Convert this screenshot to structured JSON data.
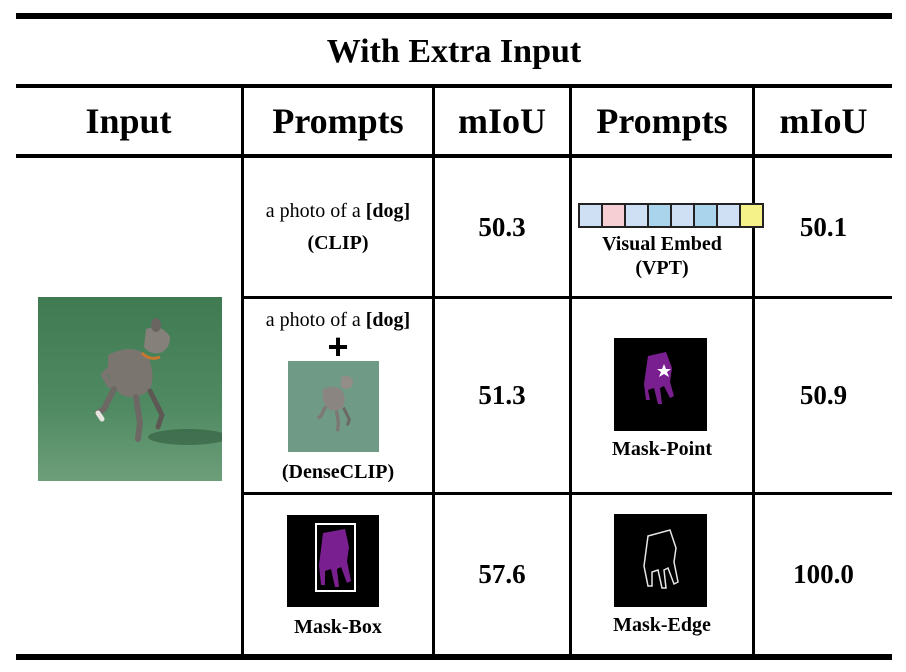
{
  "table": {
    "title": "With Extra Input",
    "headers": {
      "input": "Input",
      "prompts_1": "Prompts",
      "miou_1": "mIoU",
      "prompts_2": "Prompts",
      "miou_2": "mIoU"
    },
    "rows": [
      {
        "left_prompt_text": "a photo of a",
        "left_prompt_class": "[dog]",
        "left_prompt_method": "(CLIP)",
        "left_miou": "50.3",
        "right_prompt_label_1": "Visual Embed",
        "right_prompt_label_2": "(VPT)",
        "right_miou": "50.1"
      },
      {
        "left_prompt_text": "a photo of a",
        "left_prompt_class": "[dog]",
        "left_prompt_plus": "+",
        "left_prompt_method": "(DenseCLIP)",
        "left_miou": "51.3",
        "right_prompt_label": "Mask-Point",
        "right_miou": "50.9"
      },
      {
        "left_prompt_label": "Mask-Box",
        "left_miou": "57.6",
        "right_prompt_label": "Mask-Edge",
        "right_miou": "100.0"
      }
    ],
    "visual_embed_colors": [
      "#cfe0f5",
      "#f5cfd3",
      "#cfe0f5",
      "#a9d4ec",
      "#cfe0f5",
      "#a9d4ec",
      "#cfe0f5",
      "#f6f28a"
    ],
    "mask_color": "#7a1f8f"
  }
}
